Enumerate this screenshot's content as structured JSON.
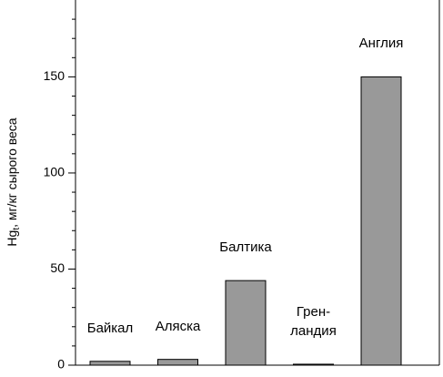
{
  "chart_data": {
    "type": "bar",
    "ylabel": {
      "main": "Hg",
      "sub": "t",
      "rest": ", мг/кг сырого веса"
    },
    "categories": [
      "Байкал",
      "Аляска",
      "Балтика",
      "Грен-\nландия",
      "Англия"
    ],
    "values": [
      2,
      3,
      44,
      0.5,
      150
    ],
    "color": "#999999",
    "ylim": [
      0,
      190
    ],
    "yticks": [
      0,
      50,
      100,
      150
    ],
    "minor_yticks": [
      10,
      20,
      30,
      40,
      60,
      70,
      80,
      90,
      110,
      120,
      130,
      140,
      160,
      170,
      180
    ]
  }
}
